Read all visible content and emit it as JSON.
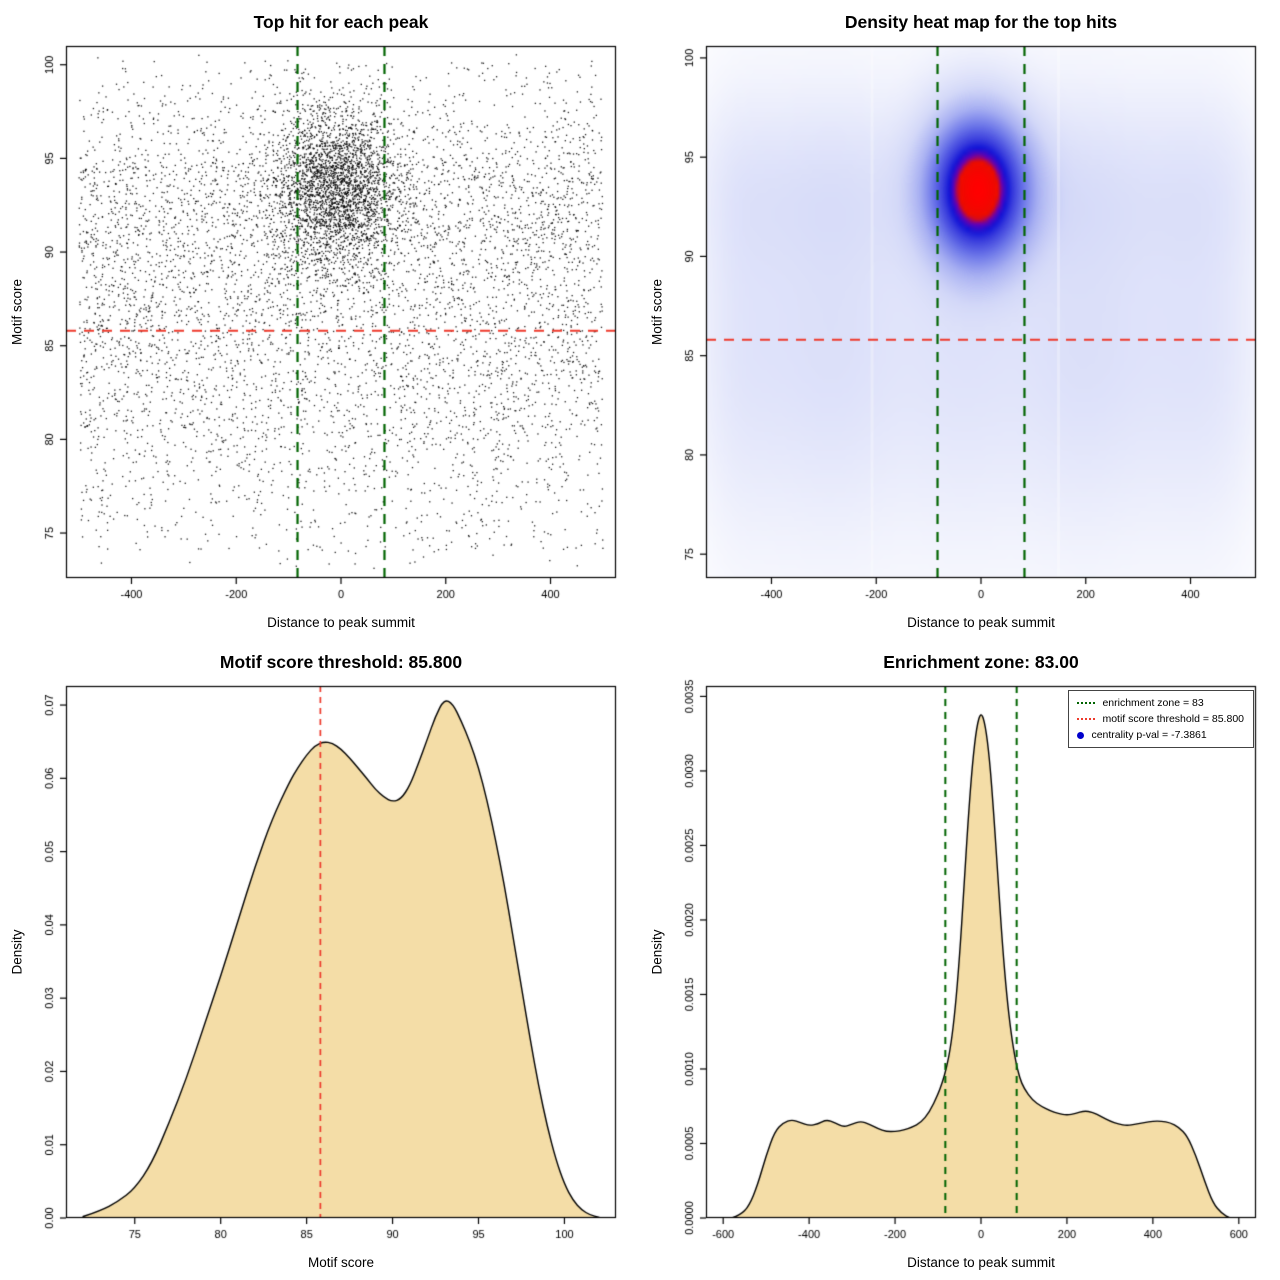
{
  "chart_data": [
    {
      "type": "scatter",
      "title": "Top hit for each peak",
      "xlabel": "Distance to peak summit",
      "ylabel": "Motif score",
      "xlim": [
        -525,
        525
      ],
      "ylim": [
        72.6,
        101.0
      ],
      "xticks": [
        -400,
        -200,
        0,
        200,
        400
      ],
      "xtick_labels": [
        "-400",
        "-200",
        "0",
        "200",
        "400"
      ],
      "yticks": [
        75,
        80,
        85,
        90,
        95,
        100
      ],
      "ytick_labels": [
        "75",
        "80",
        "85",
        "90",
        "95",
        "100"
      ],
      "point_color": "#000000",
      "hline": {
        "y": 85.8,
        "color": "#ee3a2c",
        "dash": [
          10,
          8
        ],
        "width": 2
      },
      "vlines": [
        {
          "x": -83,
          "color": "#006400",
          "dash": [
            10,
            8
          ],
          "width": 2.2
        },
        {
          "x": 83,
          "color": "#006400",
          "dash": [
            10,
            8
          ],
          "width": 2.2
        }
      ],
      "scatter_model": {
        "seed": 987123,
        "n_background": 5600,
        "x_range": [
          -500,
          500
        ],
        "background_y_mixture": [
          {
            "w": 0.5,
            "mean": 85.2,
            "sd": 4.9
          },
          {
            "w": 0.27,
            "mean": 93.2,
            "sd": 2.9
          },
          {
            "w": 0.23,
            "uniform": [
              74,
              100.2
            ]
          }
        ],
        "n_cluster": 2700,
        "cluster": {
          "x_mean": -8,
          "x_sd": 60,
          "y_mean": 93.4,
          "y_sd": 2.2
        },
        "point_size": 1.3
      }
    },
    {
      "type": "heatmap",
      "title": "Density heat map for the top hits",
      "xlabel": "Distance to peak summit",
      "ylabel": "Motif score",
      "xlim": [
        -525,
        525
      ],
      "ylim": [
        73.8,
        100.6
      ],
      "xticks": [
        -400,
        -200,
        0,
        200,
        400
      ],
      "xtick_labels": [
        "-400",
        "-200",
        "0",
        "200",
        "400"
      ],
      "yticks": [
        75,
        80,
        85,
        90,
        95,
        100
      ],
      "ytick_labels": [
        "75",
        "80",
        "85",
        "90",
        "95",
        "100"
      ],
      "hotspot": {
        "x": 0,
        "y": 93.5
      },
      "hline": {
        "y": 85.8,
        "color": "#ee3a2c",
        "dash": [
          10,
          8
        ],
        "width": 2
      },
      "vlines": [
        {
          "x": -83,
          "color": "#006400",
          "dash": [
            10,
            8
          ],
          "width": 2.2
        },
        {
          "x": 83,
          "color": "#006400",
          "dash": [
            10,
            8
          ],
          "width": 2.2
        }
      ],
      "white_streaks": [
        -208,
        148
      ],
      "density_model": {
        "background_weight": 0.62,
        "x_edge": 505,
        "edge_softness": 28,
        "y_mixture": [
          {
            "w": 0.48,
            "mean": 85.0,
            "sd": 5.0
          },
          {
            "w": 0.3,
            "mean": 93.2,
            "sd": 3.0
          },
          {
            "w": 0.22,
            "mean": 86.0,
            "sd": 9.0
          }
        ],
        "cluster": {
          "weight": 0.38,
          "x_mean": -5,
          "x_sd": 62,
          "y_mean": 93.4,
          "y_sd": 2.4
        },
        "gamma": 0.62
      },
      "colormap": [
        {
          "t": 0,
          "c": "#ffffff"
        },
        {
          "t": 0.1,
          "c": "#edeffc"
        },
        {
          "t": 0.26,
          "c": "#d3d8f8"
        },
        {
          "t": 0.42,
          "c": "#a8b0f2"
        },
        {
          "t": 0.58,
          "c": "#6d77e9"
        },
        {
          "t": 0.72,
          "c": "#3a3edd"
        },
        {
          "t": 0.8,
          "c": "#1212d6"
        },
        {
          "t": 0.86,
          "c": "#6a00b0"
        },
        {
          "t": 0.9,
          "c": "#e80d00"
        },
        {
          "t": 1,
          "c": "#ff0000"
        }
      ]
    },
    {
      "type": "density",
      "title": "Motif score threshold: 85.800",
      "xlabel": "Motif score",
      "ylabel": "Density",
      "xlim": [
        71,
        103
      ],
      "ylim": [
        0,
        0.0726
      ],
      "xticks": [
        75,
        80,
        85,
        90,
        95,
        100
      ],
      "xtick_labels": [
        "75",
        "80",
        "85",
        "90",
        "95",
        "100"
      ],
      "yticks": [
        0,
        0.01,
        0.02,
        0.03,
        0.04,
        0.05,
        0.06,
        0.07
      ],
      "ytick_labels": [
        "0.00",
        "0.01",
        "0.02",
        "0.03",
        "0.04",
        "0.05",
        "0.06",
        "0.07"
      ],
      "fill": "#f4dda7",
      "stroke": "#000000",
      "threshold": 85.8,
      "vlines": [
        {
          "x": 85.8,
          "color": "#ee3a2c",
          "dash": [
            6,
            5
          ],
          "width": 1.7
        }
      ],
      "x": [
        72,
        73,
        74,
        75,
        76,
        77,
        78,
        79,
        80,
        81,
        82,
        83,
        84,
        84.5,
        85,
        85.5,
        86,
        86.5,
        87,
        87.5,
        88,
        88.5,
        89,
        89.5,
        90,
        90.5,
        91,
        91.5,
        92,
        92.5,
        93,
        93.5,
        94,
        94.5,
        95,
        95.5,
        96,
        96.5,
        97,
        97.5,
        98,
        98.5,
        99,
        99.5,
        100,
        100.5,
        101,
        101.5,
        102
      ],
      "y": [
        0.0002,
        0.001,
        0.0022,
        0.004,
        0.0075,
        0.013,
        0.019,
        0.026,
        0.033,
        0.0405,
        0.048,
        0.0545,
        0.0595,
        0.0615,
        0.0632,
        0.0645,
        0.065,
        0.0648,
        0.064,
        0.0628,
        0.0614,
        0.06,
        0.0585,
        0.0574,
        0.0568,
        0.0572,
        0.059,
        0.062,
        0.0652,
        0.0685,
        0.0708,
        0.0702,
        0.0678,
        0.065,
        0.0615,
        0.057,
        0.0515,
        0.0455,
        0.0385,
        0.0315,
        0.0245,
        0.018,
        0.0125,
        0.008,
        0.0046,
        0.0024,
        0.0011,
        0.0004,
        0.0001
      ]
    },
    {
      "type": "density",
      "title": "Enrichment zone: 83.00",
      "xlabel": "Distance to peak summit",
      "ylabel": "Density",
      "xlim": [
        -640,
        640
      ],
      "ylim": [
        0,
        0.00357
      ],
      "xticks": [
        -600,
        -400,
        -200,
        0,
        200,
        400,
        600
      ],
      "xtick_labels": [
        "-600",
        "-400",
        "-200",
        "0",
        "200",
        "400",
        "600"
      ],
      "yticks": [
        0,
        0.0005,
        0.001,
        0.0015,
        0.002,
        0.0025,
        0.003,
        0.0035
      ],
      "ytick_labels": [
        "0.0000",
        "0.0005",
        "0.0010",
        "0.0015",
        "0.0020",
        "0.0025",
        "0.0030",
        "0.0035"
      ],
      "fill": "#f4dda7",
      "stroke": "#000000",
      "enrichment_zone": 83,
      "vlines": [
        {
          "x": -83,
          "color": "#006400",
          "dash": [
            7,
            6
          ],
          "width": 2
        },
        {
          "x": 83,
          "color": "#006400",
          "dash": [
            7,
            6
          ],
          "width": 2
        }
      ],
      "legend": {
        "entries": [
          {
            "label": "enrichment zone = 83",
            "marker": "dotted-line",
            "color": "#006400"
          },
          {
            "label": "motif score threshold = 85.800",
            "marker": "dotted-line",
            "color": "#ee3a2c"
          },
          {
            "label": "centrality p-val = -7.3861",
            "marker": "dot",
            "color": "#0000cc"
          }
        ]
      },
      "x": [
        -580,
        -560,
        -540,
        -520,
        -500,
        -480,
        -460,
        -440,
        -420,
        -400,
        -380,
        -360,
        -340,
        -320,
        -300,
        -280,
        -260,
        -240,
        -220,
        -200,
        -180,
        -160,
        -140,
        -120,
        -100,
        -90,
        -80,
        -70,
        -60,
        -50,
        -40,
        -30,
        -20,
        -10,
        0,
        10,
        20,
        30,
        40,
        50,
        60,
        70,
        80,
        90,
        100,
        120,
        140,
        160,
        180,
        200,
        220,
        240,
        260,
        280,
        300,
        320,
        340,
        360,
        380,
        400,
        420,
        440,
        460,
        480,
        500,
        520,
        540,
        560,
        580
      ],
      "y": [
        0,
        2e-05,
        8e-05,
        0.00022,
        0.00042,
        0.00058,
        0.00064,
        0.00066,
        0.00064,
        0.00062,
        0.00063,
        0.00066,
        0.00064,
        0.00061,
        0.00063,
        0.00065,
        0.00063,
        0.0006,
        0.00058,
        0.00058,
        0.00059,
        0.00061,
        0.00064,
        0.00071,
        0.00083,
        0.00091,
        0.00101,
        0.00116,
        0.0014,
        0.00175,
        0.0022,
        0.00267,
        0.00305,
        0.0033,
        0.0034,
        0.00331,
        0.00308,
        0.0027,
        0.00226,
        0.00183,
        0.00149,
        0.00124,
        0.00106,
        0.00094,
        0.00087,
        0.00079,
        0.00075,
        0.00072,
        0.0007,
        0.00069,
        0.0007,
        0.00072,
        0.00071,
        0.00068,
        0.00065,
        0.00063,
        0.00062,
        0.00063,
        0.00064,
        0.00065,
        0.00065,
        0.00064,
        0.00061,
        0.00055,
        0.00042,
        0.00025,
        0.0001,
        3e-05,
        0
      ]
    }
  ]
}
